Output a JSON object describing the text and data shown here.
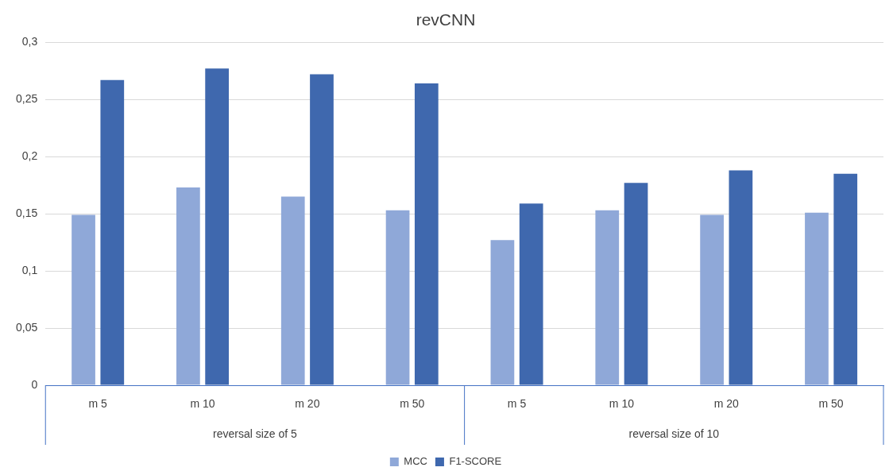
{
  "chart_data": {
    "type": "bar",
    "title": "revCNN",
    "categories": [
      "m 5",
      "m 10",
      "m 20",
      "m 50",
      "m 5",
      "m 10",
      "m 20",
      "m 50"
    ],
    "series": [
      {
        "name": "MCC",
        "color": "#8fa8d8",
        "values": [
          0.149,
          0.173,
          0.165,
          0.153,
          0.127,
          0.153,
          0.149,
          0.151
        ]
      },
      {
        "name": "F1-SCORE",
        "color": "#3f68ae",
        "values": [
          0.267,
          0.277,
          0.272,
          0.264,
          0.159,
          0.177,
          0.188,
          0.185
        ]
      }
    ],
    "annotations": [
      "reversal size of 5",
      "reversal size of 10"
    ],
    "ylim": [
      0,
      0.3
    ],
    "yticks": [
      0,
      {
        "value": 0.05,
        "label": "0,05"
      },
      {
        "value": 0.1,
        "label": "0,1"
      },
      {
        "value": 0.15,
        "label": "0,15"
      },
      {
        "value": 0.2,
        "label": "0,2"
      },
      {
        "value": 0.25,
        "label": "0,25"
      },
      {
        "value": 0.3,
        "label": "0,3"
      }
    ],
    "grid": "y",
    "legend": "bottom"
  }
}
